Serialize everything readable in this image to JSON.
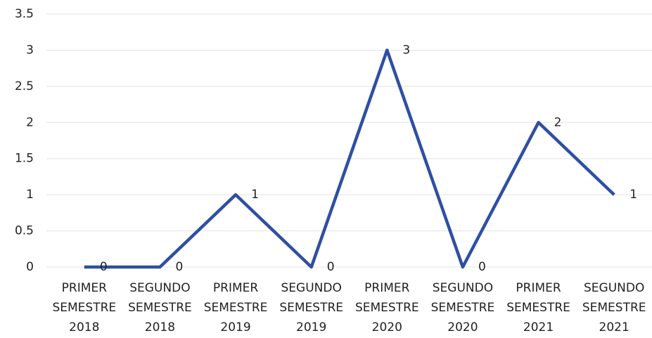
{
  "chart_data": {
    "type": "line",
    "categories": [
      "PRIMER SEMESTRE 2018",
      "SEGUNDO SEMESTRE 2018",
      "PRIMER SEMESTRE 2019",
      "SEGUNDO SEMESTRE 2019",
      "PRIMER SEMESTRE 2020",
      "SEGUNDO SEMESTRE 2020",
      "PRIMER SEMESTRE 2021",
      "SEGUNDO SEMESTRE 2021"
    ],
    "values": [
      0,
      0,
      1,
      0,
      3,
      0,
      2,
      1
    ],
    "color": "#2e4fa3",
    "ylim": [
      0,
      3.5
    ],
    "yticks": [
      0,
      0.5,
      1,
      1.5,
      2,
      2.5,
      3,
      3.5
    ],
    "grid": true
  }
}
